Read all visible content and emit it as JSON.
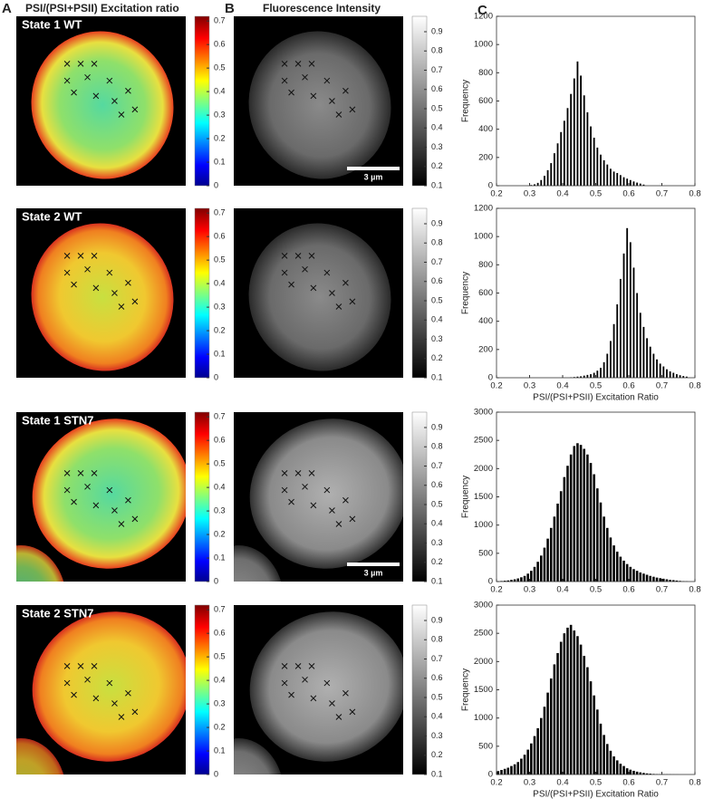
{
  "panels": {
    "A": {
      "letter": "A",
      "title": "PSI/(PSI+PSII) Excitation ratio"
    },
    "B": {
      "letter": "B",
      "title": "Fluorescence Intensity"
    },
    "C": {
      "letter": "C"
    }
  },
  "rows": [
    {
      "label": "State 1 WT",
      "scale_bar": "3 µm"
    },
    {
      "label": "State 2 WT"
    },
    {
      "label": "State 1 STN7",
      "scale_bar": "3 µm"
    },
    {
      "label": "State 2 STN7"
    }
  ],
  "colorbars": {
    "ratio": [
      0,
      0.1,
      0.2,
      0.3,
      0.4,
      0.5,
      0.6,
      0.7
    ],
    "intensity": [
      0.1,
      0.2,
      0.3,
      0.4,
      0.5,
      0.6,
      0.7,
      0.8,
      0.9
    ]
  },
  "chart_data": [
    {
      "type": "histogram",
      "ylabel": "Frequency",
      "color": "#000000",
      "xlim": [
        0.2,
        0.8
      ],
      "xticks": [
        0.2,
        0.3,
        0.4,
        0.5,
        0.6,
        0.7,
        0.8
      ],
      "ylim": [
        0,
        1200
      ],
      "yticks": [
        0,
        200,
        400,
        600,
        800,
        1000,
        1200
      ],
      "bins": [
        0.3,
        0.31,
        0.32,
        0.33,
        0.34,
        0.35,
        0.36,
        0.37,
        0.38,
        0.39,
        0.4,
        0.41,
        0.42,
        0.43,
        0.44,
        0.45,
        0.46,
        0.47,
        0.48,
        0.49,
        0.5,
        0.51,
        0.52,
        0.53,
        0.54,
        0.55,
        0.56,
        0.57,
        0.58,
        0.59,
        0.6,
        0.61,
        0.62,
        0.63,
        0.64,
        0.65
      ],
      "counts": [
        5,
        10,
        20,
        40,
        70,
        110,
        160,
        230,
        300,
        380,
        460,
        550,
        650,
        760,
        880,
        780,
        640,
        520,
        420,
        340,
        270,
        220,
        180,
        150,
        120,
        100,
        90,
        75,
        60,
        50,
        40,
        30,
        22,
        15,
        8
      ]
    },
    {
      "type": "histogram",
      "ylabel": "Frequency",
      "xlabel": "PSI/(PSI+PSII) Excitation Ratio",
      "color": "#000000",
      "xlim": [
        0.2,
        0.8
      ],
      "xticks": [
        0.2,
        0.3,
        0.4,
        0.5,
        0.6,
        0.7,
        0.8
      ],
      "ylim": [
        0,
        1200
      ],
      "yticks": [
        0,
        200,
        400,
        600,
        800,
        1000,
        1200
      ],
      "bins": [
        0.42,
        0.43,
        0.44,
        0.45,
        0.46,
        0.47,
        0.48,
        0.49,
        0.5,
        0.51,
        0.52,
        0.53,
        0.54,
        0.55,
        0.56,
        0.57,
        0.58,
        0.59,
        0.6,
        0.61,
        0.62,
        0.63,
        0.64,
        0.65,
        0.66,
        0.67,
        0.68,
        0.69,
        0.7,
        0.71,
        0.72,
        0.73,
        0.74,
        0.75,
        0.76,
        0.77,
        0.78
      ],
      "counts": [
        3,
        5,
        8,
        10,
        15,
        20,
        25,
        35,
        50,
        70,
        110,
        170,
        260,
        380,
        520,
        700,
        880,
        1060,
        960,
        780,
        600,
        460,
        360,
        280,
        220,
        170,
        130,
        100,
        80,
        60,
        45,
        35,
        25,
        18,
        12,
        8
      ]
    },
    {
      "type": "histogram",
      "ylabel": "Frequency",
      "color": "#000000",
      "xlim": [
        0.2,
        0.8
      ],
      "xticks": [
        0.2,
        0.3,
        0.4,
        0.5,
        0.6,
        0.7,
        0.8
      ],
      "ylim": [
        0,
        3000
      ],
      "yticks": [
        0,
        500,
        1000,
        1500,
        2000,
        2500,
        3000
      ],
      "bins": [
        0.2,
        0.21,
        0.22,
        0.23,
        0.24,
        0.25,
        0.26,
        0.27,
        0.28,
        0.29,
        0.3,
        0.31,
        0.32,
        0.33,
        0.34,
        0.35,
        0.36,
        0.37,
        0.38,
        0.39,
        0.4,
        0.41,
        0.42,
        0.43,
        0.44,
        0.45,
        0.46,
        0.47,
        0.48,
        0.49,
        0.5,
        0.51,
        0.52,
        0.53,
        0.54,
        0.55,
        0.56,
        0.57,
        0.58,
        0.59,
        0.6,
        0.61,
        0.62,
        0.63,
        0.64,
        0.65,
        0.66,
        0.67,
        0.68,
        0.69,
        0.7,
        0.71,
        0.72,
        0.73,
        0.74,
        0.75,
        0.76,
        0.77,
        0.78
      ],
      "counts": [
        5,
        10,
        15,
        20,
        30,
        40,
        55,
        75,
        100,
        140,
        190,
        260,
        350,
        460,
        600,
        760,
        950,
        1150,
        1380,
        1600,
        1850,
        2050,
        2250,
        2400,
        2450,
        2420,
        2350,
        2250,
        2100,
        1900,
        1650,
        1400,
        1150,
        950,
        780,
        640,
        530,
        440,
        370,
        310,
        260,
        220,
        190,
        160,
        140,
        120,
        100,
        85,
        70,
        60,
        50,
        40,
        30,
        25,
        18,
        12,
        8,
        5
      ]
    },
    {
      "type": "histogram",
      "ylabel": "Frequency",
      "xlabel": "PSI/(PSI+PSII) Excitation Ratio",
      "color": "#000000",
      "xlim": [
        0.2,
        0.8
      ],
      "xticks": [
        0.2,
        0.3,
        0.4,
        0.5,
        0.6,
        0.7,
        0.8
      ],
      "ylim": [
        0,
        3000
      ],
      "yticks": [
        0,
        500,
        1000,
        1500,
        2000,
        2500,
        3000
      ],
      "bins": [
        0.2,
        0.21,
        0.22,
        0.23,
        0.24,
        0.25,
        0.26,
        0.27,
        0.28,
        0.29,
        0.3,
        0.31,
        0.32,
        0.33,
        0.34,
        0.35,
        0.36,
        0.37,
        0.38,
        0.39,
        0.4,
        0.41,
        0.42,
        0.43,
        0.44,
        0.45,
        0.46,
        0.47,
        0.48,
        0.49,
        0.5,
        0.51,
        0.52,
        0.53,
        0.54,
        0.55,
        0.56,
        0.57,
        0.58,
        0.59,
        0.6,
        0.61,
        0.62,
        0.63,
        0.64,
        0.65,
        0.66,
        0.67,
        0.68,
        0.69,
        0.7,
        0.71,
        0.72,
        0.73,
        0.74,
        0.75
      ],
      "counts": [
        60,
        80,
        100,
        120,
        150,
        180,
        220,
        280,
        350,
        440,
        550,
        680,
        820,
        1000,
        1200,
        1450,
        1700,
        1950,
        2150,
        2350,
        2500,
        2600,
        2650,
        2550,
        2450,
        2300,
        2100,
        1900,
        1650,
        1400,
        1150,
        900,
        700,
        540,
        420,
        320,
        250,
        190,
        150,
        110,
        85,
        65,
        50,
        38,
        28,
        20,
        15,
        10,
        8,
        6,
        5,
        4,
        3,
        2,
        1
      ]
    }
  ]
}
